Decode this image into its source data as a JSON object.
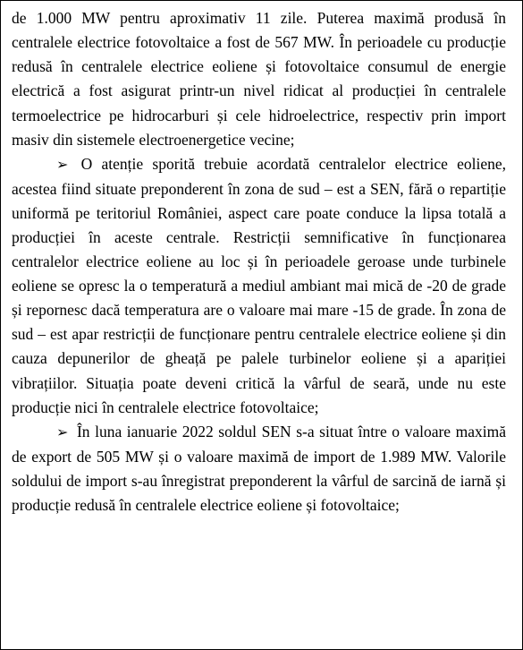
{
  "document": {
    "font_family": "Times New Roman",
    "font_size_pt": 13,
    "line_height": 1.55,
    "text_color": "#000000",
    "background_color": "#ffffff",
    "border_color": "#000000",
    "bullet_glyph": "➢",
    "paragraphs": [
      {
        "type": "continuation",
        "text": "de 1.000 MW pentru aproximativ 11 zile. Puterea maximă produsă în centralele electrice fotovoltaice a fost de 567 MW. În perioadele cu producție redusă în centralele electrice eoliene și fotovoltaice consumul de energie electrică a fost asigurat printr-un nivel ridicat al producției în centralele termoelectrice pe hidrocarburi și cele hidroelectrice, respectiv prin import masiv din sistemele electroenergetice vecine;"
      },
      {
        "type": "bullet",
        "text": "O atenție sporită trebuie acordată centralelor electrice eoliene, acestea fiind situate preponderent în zona de sud – est a SEN, fără o repartiție uniformă pe teritoriul României, aspect care poate conduce la lipsa totală a producției în aceste centrale. Restricții semnificative în funcționarea centralelor electrice eoliene au loc și în perioadele geroase unde turbinele eoliene se opresc la o temperatură a mediul ambiant mai mică de -20 de grade și repornesc dacă temperatura are o valoare mai mare -15 de grade. În zona de sud – est apar restricții de funcționare pentru centralele electrice eoliene și din cauza depunerilor de gheață pe palele turbinelor eoliene și a apariției vibrațiilor. Situația poate deveni critică la vârful de seară, unde nu este producție nici în centralele electrice fotovoltaice;"
      },
      {
        "type": "bullet",
        "text": "În luna ianuarie 2022 soldul SEN s-a situat între o valoare maximă de export de 505 MW și o valoare maximă de import de 1.989 MW. Valorile soldului de import s-au înregistrat preponderent la vârful de sarcină de iarnă și producție redusă în centralele electrice eoliene și fotovoltaice;"
      }
    ]
  }
}
